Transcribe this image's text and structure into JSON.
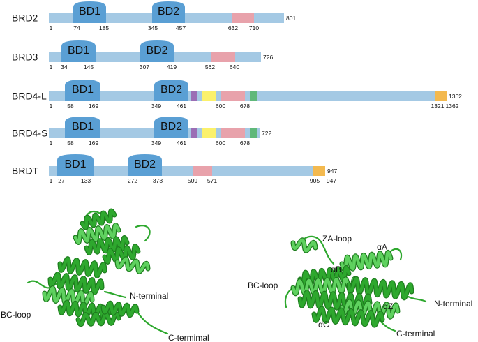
{
  "colors": {
    "bar": "#a4c9e4",
    "domain": "#5a9fd4",
    "pink": "#e8a2ab",
    "purple": "#9b6eb5",
    "yellow": "#fbf16b",
    "green": "#5fb87a",
    "orange": "#f3b94f",
    "ribbon": "#2ea82e",
    "ribbon_dark": "#1f7d1f",
    "ribbon_light": "#5fd15f"
  },
  "proteins": [
    {
      "name": "BRD2",
      "length_label": "801",
      "domains": [
        {
          "label": "BD1",
          "start": "74",
          "end": "185"
        },
        {
          "label": "BD2",
          "start": "345",
          "end": "457"
        }
      ],
      "positions": [
        "1",
        "74",
        "185",
        "345",
        "457",
        "632",
        "710"
      ],
      "blocks": [
        "pink"
      ]
    },
    {
      "name": "BRD3",
      "length_label": "726",
      "domains": [
        {
          "label": "BD1",
          "start": "34",
          "end": "145"
        },
        {
          "label": "BD2",
          "start": "307",
          "end": "419"
        }
      ],
      "positions": [
        "1",
        "34",
        "145",
        "307",
        "419",
        "562",
        "640"
      ],
      "blocks": [
        "pink"
      ]
    },
    {
      "name": "BRD4-L",
      "length_label": "1362",
      "domains": [
        {
          "label": "BD1",
          "start": "58",
          "end": "169"
        },
        {
          "label": "BD2",
          "start": "349",
          "end": "461"
        }
      ],
      "positions": [
        "1",
        "58",
        "169",
        "349",
        "461",
        "600",
        "678",
        "1321",
        "1362"
      ],
      "blocks": [
        "purple",
        "yellow",
        "pink",
        "green",
        "orange"
      ]
    },
    {
      "name": "BRD4-S",
      "length_label": "722",
      "domains": [
        {
          "label": "BD1",
          "start": "58",
          "end": "169"
        },
        {
          "label": "BD2",
          "start": "349",
          "end": "461"
        }
      ],
      "positions": [
        "1",
        "58",
        "169",
        "349",
        "461",
        "600",
        "678"
      ],
      "blocks": [
        "purple",
        "yellow",
        "pink",
        "green"
      ]
    },
    {
      "name": "BRDT",
      "length_label": "947",
      "domains": [
        {
          "label": "BD1",
          "start": "27",
          "end": "133"
        },
        {
          "label": "BD2",
          "start": "272",
          "end": "373"
        }
      ],
      "positions": [
        "1",
        "27",
        "133",
        "272",
        "373",
        "509",
        "571",
        "905",
        "947"
      ],
      "blocks": [
        "pink",
        "orange"
      ]
    }
  ],
  "structure_left": {
    "labels": [
      "N-terminal",
      "BC-loop",
      "C-termimal"
    ]
  },
  "structure_right": {
    "labels": [
      "ZA-loop",
      "αA",
      "αB",
      "BC-loop",
      "N-terminal",
      "αZ",
      "αC",
      "C-terminal"
    ]
  }
}
